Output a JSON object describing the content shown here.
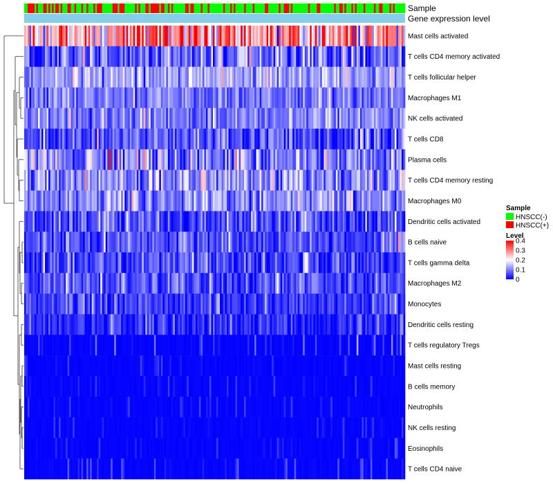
{
  "chart_data": {
    "type": "heatmap",
    "title": "",
    "annotation_tracks": [
      "Sample",
      "Gene expression level"
    ],
    "rows": [
      {
        "label": "Mast cells activated",
        "mean": 0.27,
        "spread": 0.12
      },
      {
        "label": "T cells CD4 memory activated",
        "mean": 0.08,
        "spread": 0.07
      },
      {
        "label": "T cells follicular helper",
        "mean": 0.13,
        "spread": 0.05
      },
      {
        "label": "Macrophages M1",
        "mean": 0.09,
        "spread": 0.05
      },
      {
        "label": "NK cells activated",
        "mean": 0.1,
        "spread": 0.05
      },
      {
        "label": "T cells CD8",
        "mean": 0.06,
        "spread": 0.06
      },
      {
        "label": "Plasma cells",
        "mean": 0.1,
        "spread": 0.07
      },
      {
        "label": "T cells CD4 memory resting",
        "mean": 0.11,
        "spread": 0.07
      },
      {
        "label": "Macrophages M0",
        "mean": 0.11,
        "spread": 0.06
      },
      {
        "label": "Dendritic cells activated",
        "mean": 0.06,
        "spread": 0.06
      },
      {
        "label": "B cells naive",
        "mean": 0.06,
        "spread": 0.05
      },
      {
        "label": "T cells gamma delta",
        "mean": 0.05,
        "spread": 0.05
      },
      {
        "label": "Macrophages M2",
        "mean": 0.06,
        "spread": 0.05
      },
      {
        "label": "Monocytes",
        "mean": 0.04,
        "spread": 0.04
      },
      {
        "label": "Dendritic cells resting",
        "mean": 0.03,
        "spread": 0.04
      },
      {
        "label": "T cells regulatory  Tregs",
        "mean": 0.02,
        "spread": 0.04
      },
      {
        "label": "Mast cells resting",
        "mean": 0.01,
        "spread": 0.02
      },
      {
        "label": "B cells memory",
        "mean": 0.01,
        "spread": 0.02
      },
      {
        "label": "Neutrophils",
        "mean": 0.01,
        "spread": 0.02
      },
      {
        "label": "NK cells resting",
        "mean": 0.01,
        "spread": 0.02
      },
      {
        "label": "Eosinophils",
        "mean": 0.01,
        "spread": 0.02
      },
      {
        "label": "T cells CD4 naive",
        "mean": 0.01,
        "spread": 0.03
      }
    ],
    "n_samples": 220,
    "sample_legend": {
      "title": "Sample",
      "entries": [
        {
          "label": "HNSCC(-)",
          "color": "#00FF00",
          "proportion": 0.72
        },
        {
          "label": "HNSCC(+)",
          "color": "#FF0000",
          "proportion": 0.28
        }
      ]
    },
    "gene_expression_level_color": "#87CEEB",
    "level_legend": {
      "title": "Level",
      "min": 0,
      "max": 0.4,
      "ticks": [
        "0.4",
        "0.3",
        "0.2",
        "0.1",
        "0"
      ],
      "colors": {
        "low": "#0000FF",
        "mid": "#FFFFFF",
        "high": "#FF0000"
      }
    }
  }
}
